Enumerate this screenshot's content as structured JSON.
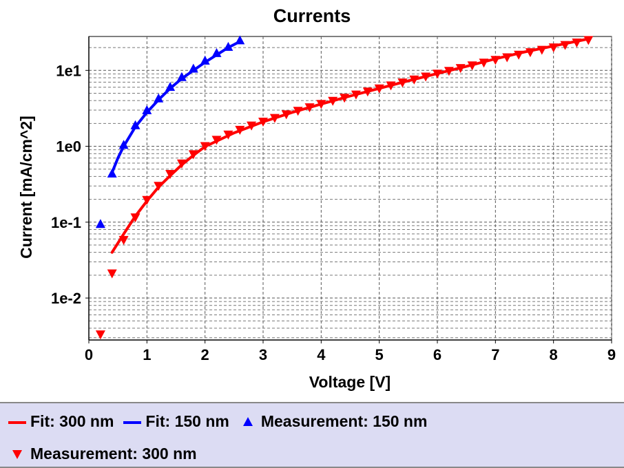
{
  "chart_data": {
    "type": "line",
    "title": "Currents",
    "xlabel": "Voltage [V]",
    "ylabel": "Current [mA/cm^2]",
    "x_scale": "linear",
    "y_scale": "log",
    "xlim": [
      0,
      9
    ],
    "ylim": [
      0.0028,
      28
    ],
    "x_ticks": [
      0,
      1,
      2,
      3,
      4,
      5,
      6,
      7,
      8,
      9
    ],
    "x_tick_labels": [
      "0",
      "1",
      "2",
      "3",
      "4",
      "5",
      "6",
      "7",
      "8",
      "9"
    ],
    "y_ticks": [
      0.01,
      0.1,
      1,
      10
    ],
    "y_tick_labels": [
      "1e-2",
      "1e-1",
      "1e0",
      "1e1"
    ],
    "grid": true,
    "legend_position": "bottom",
    "series": [
      {
        "name": "Fit: 300 nm",
        "kind": "line",
        "color": "#ff0000",
        "x": [
          0.4,
          0.6,
          0.8,
          1.0,
          1.2,
          1.4,
          1.6,
          1.8,
          2.0,
          2.5,
          3.0,
          3.5,
          4.0,
          4.5,
          5.0,
          5.5,
          6.0,
          6.5,
          7.0,
          7.5,
          8.0,
          8.6
        ],
        "y": [
          0.04,
          0.07,
          0.12,
          0.19,
          0.29,
          0.41,
          0.57,
          0.76,
          0.99,
          1.5,
          2.1,
          2.8,
          3.6,
          4.6,
          5.8,
          7.3,
          9.1,
          11.3,
          14.2,
          17.5,
          21.0,
          26.0
        ]
      },
      {
        "name": "Fit: 150 nm",
        "kind": "line",
        "color": "#0000ff",
        "x": [
          0.4,
          0.5,
          0.6,
          0.8,
          1.0,
          1.2,
          1.4,
          1.6,
          1.8,
          2.0,
          2.2,
          2.4,
          2.6
        ],
        "y": [
          0.45,
          0.7,
          1.0,
          1.8,
          2.8,
          4.1,
          5.8,
          7.8,
          10.0,
          12.8,
          16.0,
          20.0,
          24.0
        ]
      },
      {
        "name": "Measurement: 150 nm",
        "kind": "marker",
        "marker": "triangle-up",
        "color": "#0000ff",
        "x": [
          0.2,
          0.4,
          0.6,
          0.8,
          1.0,
          1.2,
          1.4,
          1.6,
          1.8,
          2.0,
          2.2,
          2.4,
          2.6
        ],
        "y": [
          0.095,
          0.44,
          1.05,
          1.9,
          3.0,
          4.3,
          6.1,
          8.2,
          10.6,
          13.5,
          17.0,
          20.5,
          25.0
        ]
      },
      {
        "name": "Measurement: 300 nm",
        "kind": "marker",
        "marker": "triangle-down",
        "color": "#ff0000",
        "x": [
          0.2,
          0.4,
          0.6,
          0.8,
          1.0,
          1.2,
          1.4,
          1.6,
          1.8,
          2.0,
          2.2,
          2.4,
          2.6,
          2.8,
          3.0,
          3.2,
          3.4,
          3.6,
          3.8,
          4.0,
          4.2,
          4.4,
          4.6,
          4.8,
          5.0,
          5.2,
          5.4,
          5.6,
          5.8,
          6.0,
          6.2,
          6.4,
          6.6,
          6.8,
          7.0,
          7.2,
          7.4,
          7.6,
          7.8,
          8.0,
          8.2,
          8.4,
          8.6
        ],
        "y": [
          0.0033,
          0.021,
          0.058,
          0.115,
          0.195,
          0.3,
          0.43,
          0.59,
          0.78,
          1.0,
          1.21,
          1.42,
          1.64,
          1.87,
          2.1,
          2.35,
          2.62,
          2.92,
          3.25,
          3.6,
          3.95,
          4.35,
          4.78,
          5.25,
          5.75,
          6.3,
          6.9,
          7.55,
          8.25,
          9.0,
          9.8,
          10.7,
          11.6,
          12.6,
          13.7,
          14.8,
          16.0,
          17.3,
          18.6,
          20.0,
          21.5,
          23.2,
          25.0
        ]
      }
    ]
  }
}
